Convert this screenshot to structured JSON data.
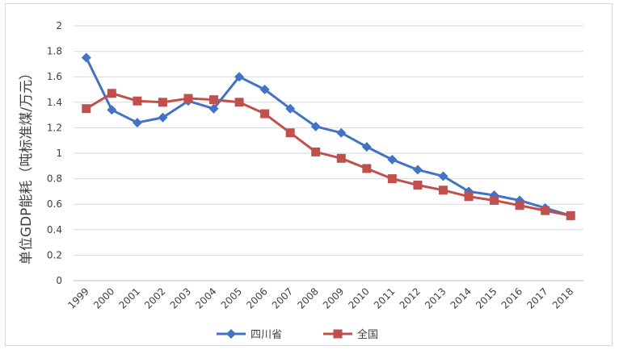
{
  "chart_data": {
    "type": "line",
    "title": "",
    "xlabel": "",
    "ylabel": "单位GDP能耗（吨标准煤/万元）",
    "ylim": [
      0,
      2
    ],
    "yticks": [
      "0",
      "0.2",
      "0.4",
      "0.6",
      "0.8",
      "1",
      "1.2",
      "1.4",
      "1.6",
      "1.8",
      "2"
    ],
    "categories": [
      "1999",
      "2000",
      "2001",
      "2002",
      "2003",
      "2004",
      "2005",
      "2006",
      "2007",
      "2008",
      "2009",
      "2010",
      "2011",
      "2012",
      "2013",
      "2014",
      "2015",
      "2016",
      "2017",
      "2018"
    ],
    "grid": true,
    "legend_position": "bottom",
    "series": [
      {
        "name": "四川省",
        "color": "#4472c4",
        "marker": "diamond",
        "values": [
          1.75,
          1.34,
          1.24,
          1.28,
          1.41,
          1.35,
          1.6,
          1.5,
          1.35,
          1.21,
          1.16,
          1.05,
          0.95,
          0.87,
          0.82,
          0.7,
          0.67,
          0.63,
          0.57,
          0.51
        ]
      },
      {
        "name": "全国",
        "color": "#c0504d",
        "marker": "square",
        "values": [
          1.35,
          1.47,
          1.41,
          1.4,
          1.43,
          1.42,
          1.4,
          1.31,
          1.16,
          1.01,
          0.96,
          0.88,
          0.8,
          0.75,
          0.71,
          0.66,
          0.63,
          0.59,
          0.55,
          0.51
        ]
      }
    ]
  }
}
